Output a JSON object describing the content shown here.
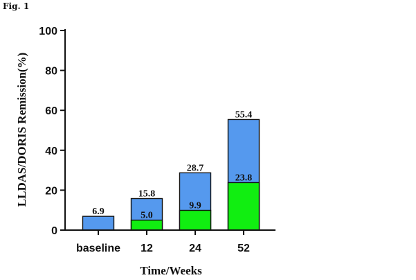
{
  "figure_label": "Fig. 1",
  "chart_data": {
    "type": "bar",
    "stacked_overlay": true,
    "categories": [
      "baseline",
      "12",
      "24",
      "52"
    ],
    "series": [
      {
        "values": [
          6.9,
          15.8,
          28.7,
          55.4
        ],
        "labels": [
          "6.9",
          "15.8",
          "28.7",
          "55.4"
        ],
        "color": "#5599ee"
      },
      {
        "values": [
          null,
          5.0,
          9.9,
          23.8
        ],
        "labels": [
          "",
          "5.0",
          "9.9",
          "23.8"
        ],
        "color": "#11ee11"
      }
    ],
    "xlabel": "Time/Weeks",
    "ylabel": "LLDAS/DORIS Remission(%)",
    "ylim": [
      0,
      100
    ],
    "yticks": [
      0,
      20,
      40,
      60,
      80,
      100
    ],
    "grid": false
  }
}
